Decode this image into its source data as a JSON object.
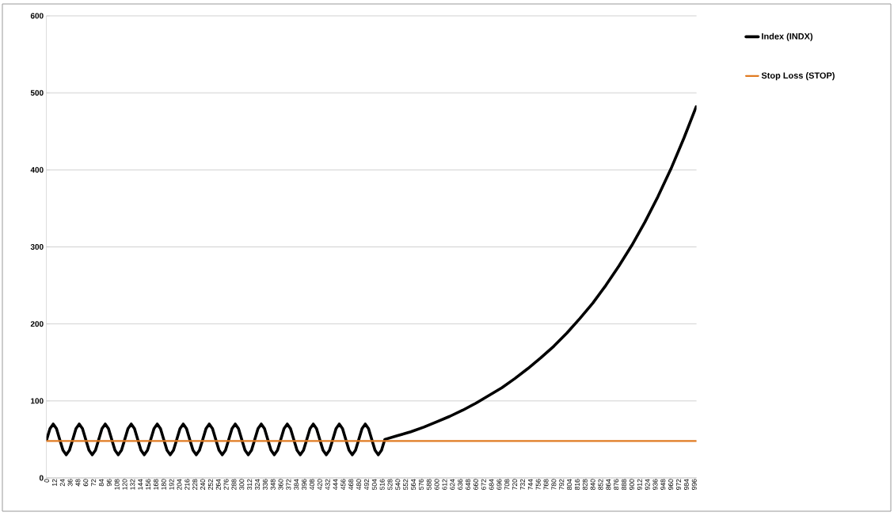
{
  "chart_data": {
    "type": "line",
    "series": [
      {
        "name": "Index (INDX)",
        "color": "#000000",
        "x": [
          0,
          5,
          10,
          15,
          20,
          25,
          30,
          35,
          40,
          45,
          50,
          55,
          60,
          65,
          70,
          75,
          80,
          85,
          90,
          95,
          100,
          105,
          110,
          115,
          120,
          125,
          130,
          135,
          140,
          145,
          150,
          155,
          160,
          165,
          170,
          175,
          180,
          185,
          190,
          195,
          200,
          205,
          210,
          215,
          220,
          225,
          230,
          235,
          240,
          245,
          250,
          255,
          260,
          265,
          270,
          275,
          280,
          285,
          290,
          295,
          300,
          305,
          310,
          315,
          320,
          325,
          330,
          335,
          340,
          345,
          350,
          355,
          360,
          365,
          370,
          375,
          380,
          385,
          390,
          395,
          400,
          405,
          410,
          415,
          420,
          425,
          430,
          435,
          440,
          445,
          450,
          455,
          460,
          465,
          470,
          475,
          480,
          485,
          490,
          495,
          500,
          505,
          510,
          515,
          520,
          540,
          560,
          580,
          600,
          620,
          640,
          660,
          680,
          700,
          720,
          740,
          760,
          780,
          800,
          820,
          840,
          860,
          880,
          900,
          920,
          940,
          960,
          980,
          999
        ],
        "values": [
          50,
          64,
          70,
          64,
          50,
          36,
          30,
          36,
          50,
          64,
          70,
          64,
          50,
          36,
          30,
          36,
          50,
          64,
          70,
          64,
          50,
          36,
          30,
          36,
          50,
          64,
          70,
          64,
          50,
          36,
          30,
          36,
          50,
          64,
          70,
          64,
          50,
          36,
          30,
          36,
          50,
          64,
          70,
          64,
          50,
          36,
          30,
          36,
          50,
          64,
          70,
          64,
          50,
          36,
          30,
          36,
          50,
          64,
          70,
          64,
          50,
          36,
          30,
          36,
          50,
          64,
          70,
          64,
          50,
          36,
          30,
          36,
          50,
          64,
          70,
          64,
          50,
          36,
          30,
          36,
          50,
          64,
          70,
          64,
          50,
          36,
          30,
          36,
          50,
          64,
          70,
          64,
          50,
          36,
          30,
          36,
          50,
          64,
          70,
          64,
          50,
          36,
          30,
          36,
          50,
          55,
          60,
          66,
          73,
          80,
          88,
          97,
          107,
          117,
          129,
          142,
          156,
          171,
          188,
          207,
          227,
          250,
          275,
          302,
          332,
          365,
          401,
          441,
          482
        ]
      },
      {
        "name": "Stop Loss (STOP)",
        "color": "#e07b22",
        "x": [
          0,
          999
        ],
        "values": [
          48,
          48
        ]
      }
    ],
    "xlim": [
      -0.5,
      999.5
    ],
    "xticks": [
      0,
      12,
      24,
      36,
      48,
      60,
      72,
      84,
      96,
      108,
      120,
      132,
      144,
      156,
      168,
      180,
      192,
      204,
      216,
      228,
      240,
      252,
      264,
      276,
      288,
      300,
      312,
      324,
      336,
      348,
      360,
      372,
      384,
      396,
      408,
      420,
      432,
      444,
      456,
      468,
      480,
      492,
      504,
      516,
      528,
      540,
      552,
      564,
      576,
      588,
      600,
      612,
      624,
      636,
      648,
      660,
      672,
      684,
      696,
      708,
      720,
      732,
      744,
      756,
      768,
      780,
      792,
      804,
      816,
      828,
      840,
      852,
      864,
      876,
      888,
      900,
      912,
      924,
      936,
      948,
      960,
      972,
      984,
      996
    ],
    "ylim": [
      0,
      600
    ],
    "yticks": [
      0,
      100,
      200,
      300,
      400,
      500,
      600
    ],
    "grid": "y",
    "legend": "right",
    "marker": "none",
    "line_style": "solid"
  }
}
